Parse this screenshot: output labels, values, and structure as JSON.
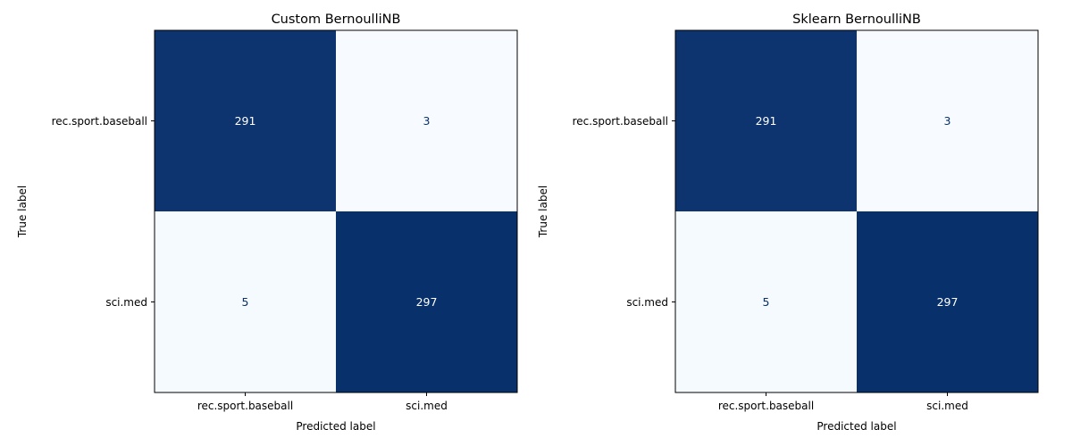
{
  "chart_data": [
    {
      "type": "heatmap",
      "title": "Custom BernoulliNB",
      "xlabel": "Predicted label",
      "ylabel": "True label",
      "x_categories": [
        "rec.sport.baseball",
        "sci.med"
      ],
      "y_categories": [
        "rec.sport.baseball",
        "sci.med"
      ],
      "values": [
        [
          291,
          3
        ],
        [
          5,
          297
        ]
      ],
      "colormap": "Blues",
      "grid": false
    },
    {
      "type": "heatmap",
      "title": "Sklearn BernoulliNB",
      "xlabel": "Predicted label",
      "ylabel": "True label",
      "x_categories": [
        "rec.sport.baseball",
        "sci.med"
      ],
      "y_categories": [
        "rec.sport.baseball",
        "sci.med"
      ],
      "values": [
        [
          291,
          3
        ],
        [
          5,
          297
        ]
      ],
      "colormap": "Blues",
      "grid": false
    }
  ],
  "colors": {
    "dark_cell": "#08306b",
    "light_cell": "#f7fbff",
    "dark_text": "#ffffff",
    "light_text": "#08306b"
  }
}
